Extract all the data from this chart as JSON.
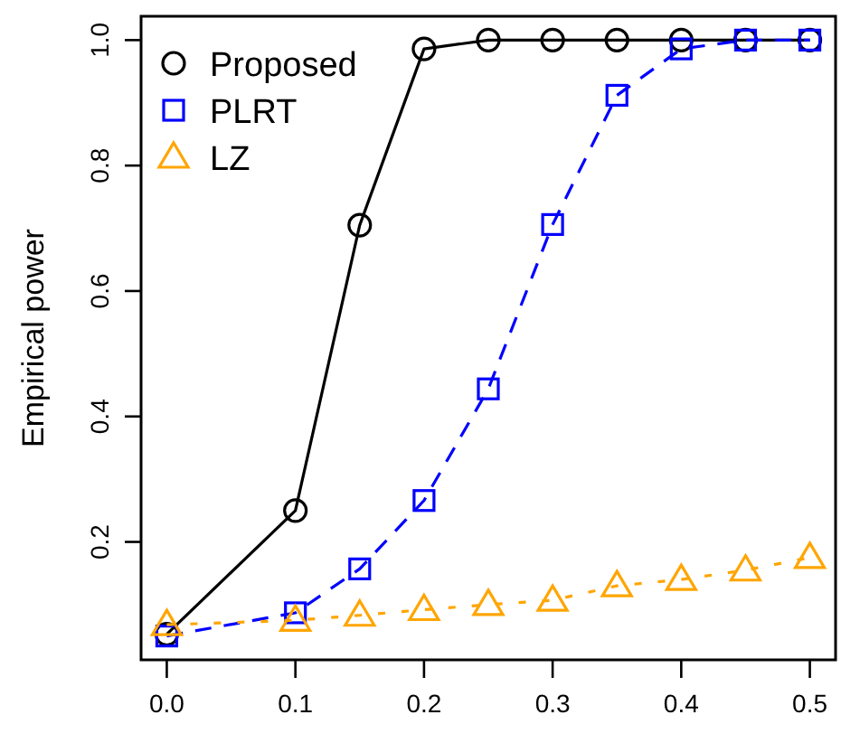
{
  "chart_data": {
    "type": "line",
    "ylabel": "Empirical power",
    "x": [
      0,
      0.1,
      0.15,
      0.2,
      0.25,
      0.3,
      0.35,
      0.4,
      0.45,
      0.5
    ],
    "series": [
      {
        "name": "Proposed",
        "color": "#000000",
        "marker": "circle",
        "line_style": "solid",
        "values": [
          0.053,
          0.25,
          0.705,
          0.986,
          1.0,
          1.0,
          1.0,
          1.0,
          1.0,
          1.0
        ]
      },
      {
        "name": "PLRT",
        "color": "#0000ff",
        "marker": "square",
        "line_style": "dashed",
        "values": [
          0.05,
          0.087,
          0.157,
          0.266,
          0.444,
          0.706,
          0.912,
          0.986,
          1.0,
          1.0
        ]
      },
      {
        "name": "LZ",
        "color": "#ffa500",
        "marker": "triangle",
        "line_style": "dotted",
        "values": [
          0.068,
          0.075,
          0.083,
          0.092,
          0.1,
          0.107,
          0.13,
          0.14,
          0.155,
          0.175
        ]
      }
    ],
    "xlim": [
      -0.02,
      0.52
    ],
    "xticks": [
      {
        "value": 0,
        "label": "0.0"
      },
      0.1,
      0.2,
      0.3,
      0.4,
      0.5
    ],
    "ylim": [
      0.012,
      1.038
    ],
    "yticks": [
      0.2,
      0.4,
      0.6,
      0.8,
      {
        "value": 1,
        "label": "1.0"
      }
    ],
    "grid": false,
    "legend": "top left"
  }
}
